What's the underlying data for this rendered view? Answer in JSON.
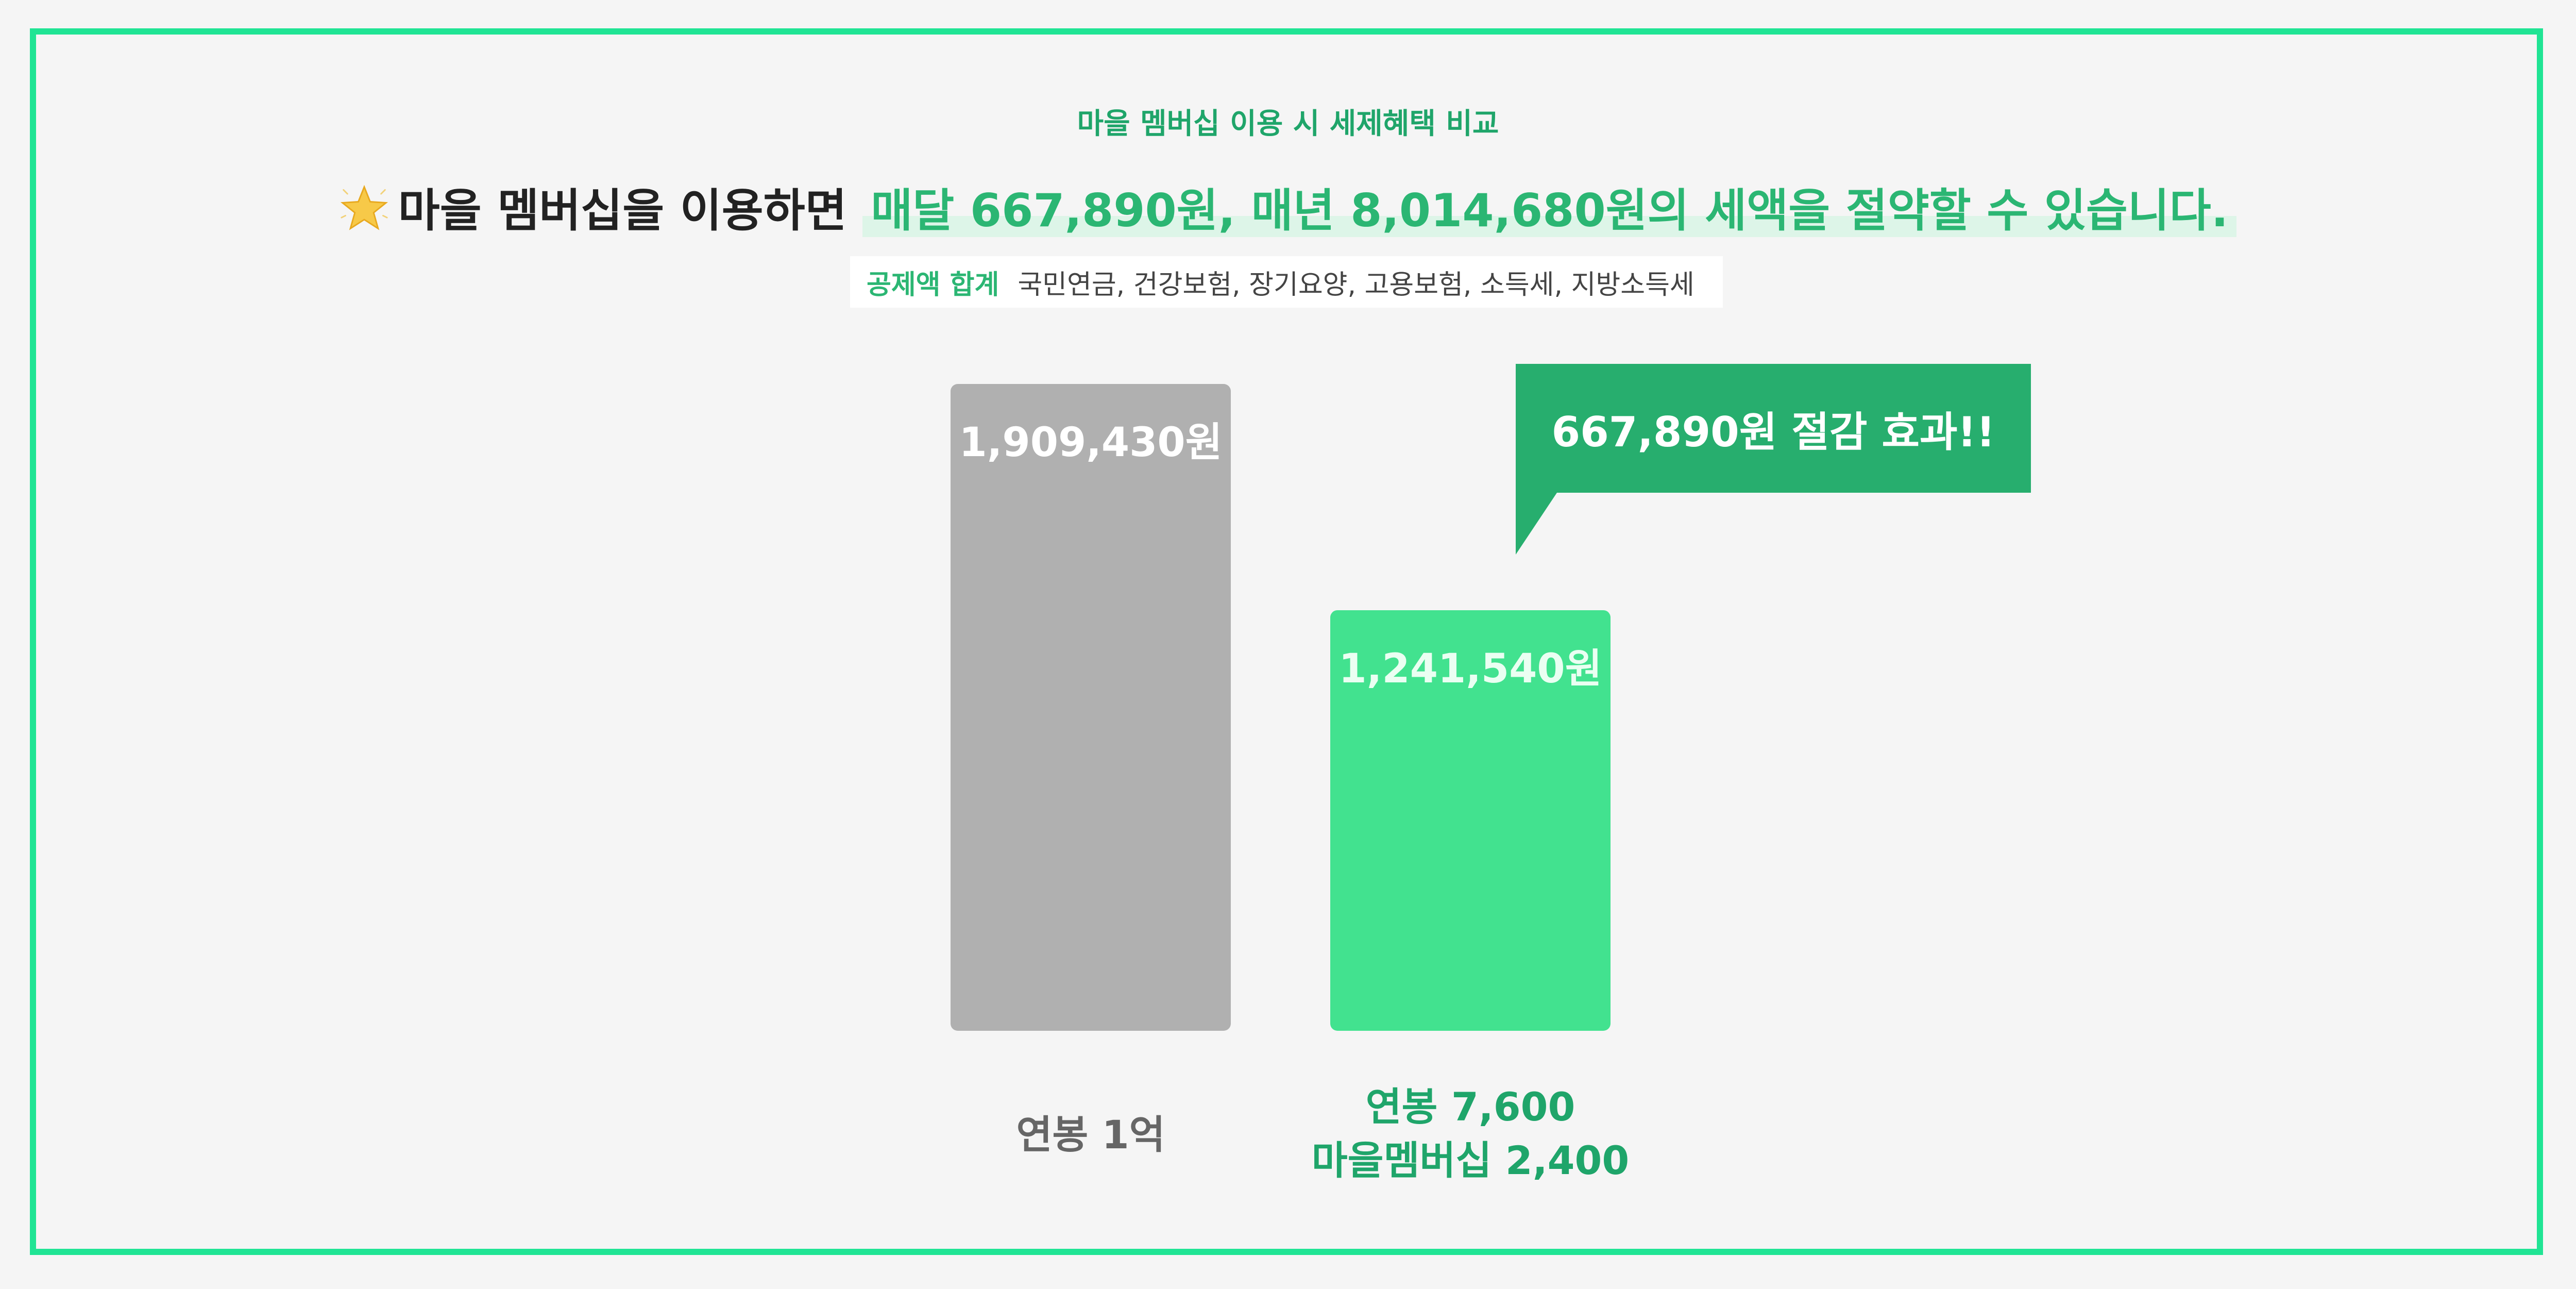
{
  "subtitle": "마을 멤버십 이용 시 세제혜택 비교",
  "headline": {
    "prefix": "마을 멤버십을 이용하면",
    "highlight": "매달 667,890원, 매년 8,014,680원의 세액을 절약할 수 있습니다.",
    "icon": "star-icon"
  },
  "deduction": {
    "label": "공제액 합계",
    "items": "국민연금, 건강보험, 장기요양, 고용보험, 소득세, 지방소득세"
  },
  "callout": {
    "text": "667,890원 절감 효과!!"
  },
  "colors": {
    "accent": "#20e494",
    "gray_bar": "#b0b0b0",
    "green_bar": "#42e28f",
    "callout": "#27ae6e",
    "text_green": "#1fa56a"
  },
  "chart_data": {
    "type": "bar",
    "categories": [
      "연봉 1억",
      "연봉 7,600\n마을멤버십 2,400"
    ],
    "category_lines": [
      [
        "연봉 1억"
      ],
      [
        "연봉 7,600",
        "마을멤버십 2,400"
      ]
    ],
    "values": [
      1909430,
      1241540
    ],
    "value_labels": [
      "1,909,430원",
      "1,241,540원"
    ],
    "ylim": [
      0,
      1909430
    ]
  }
}
